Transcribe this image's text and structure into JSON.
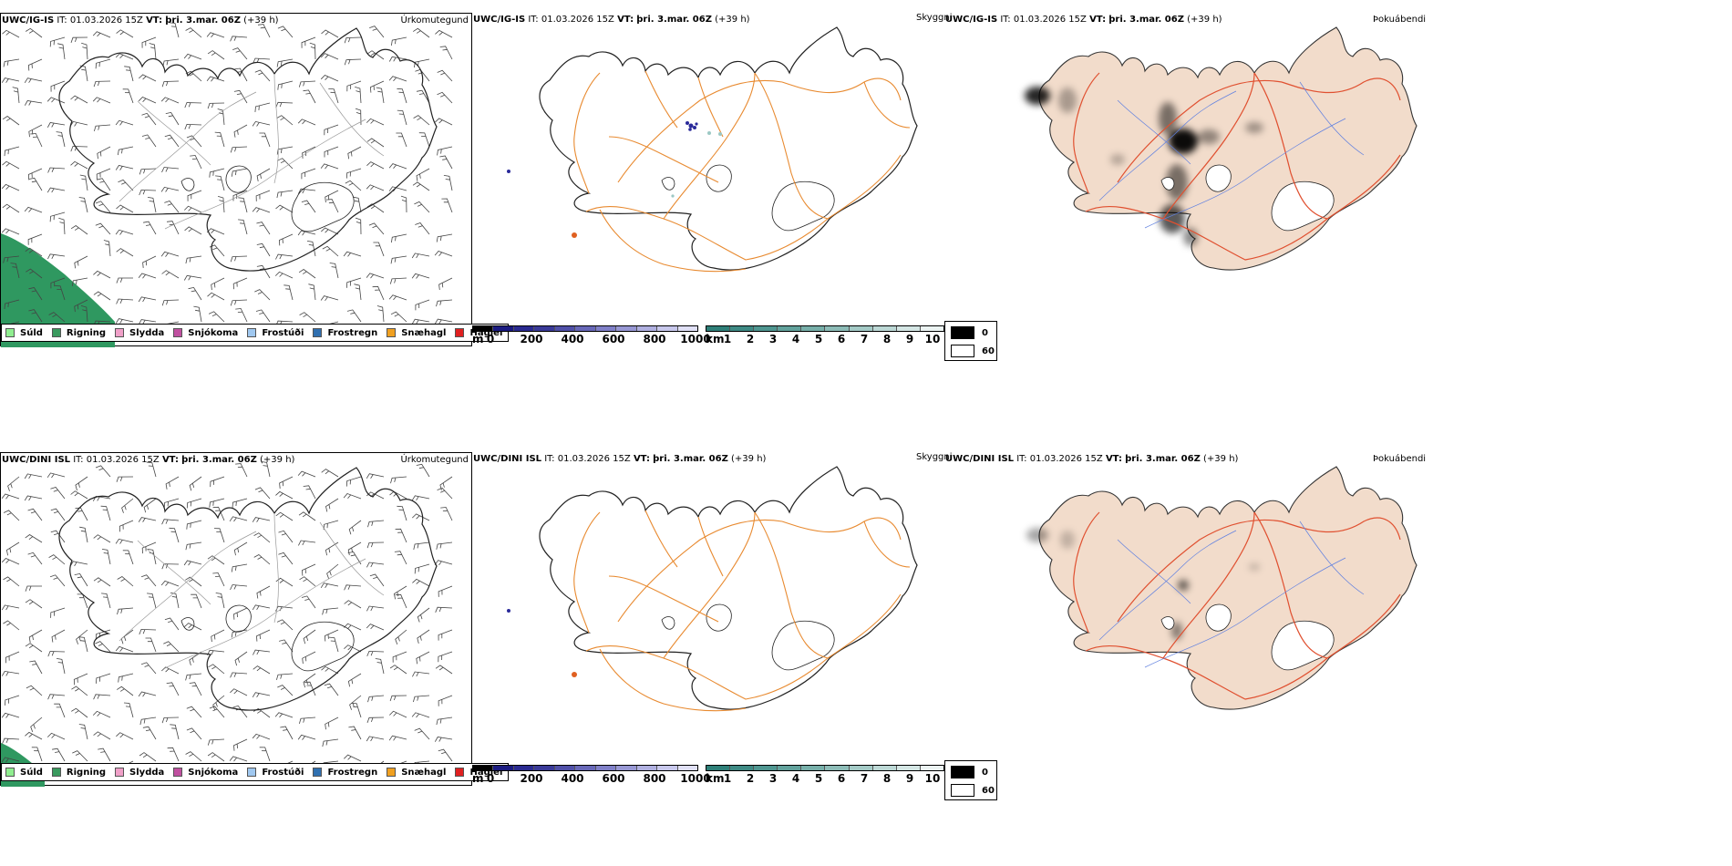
{
  "rows": [
    {
      "model": "UWC/IG-IS",
      "it_label": "IT:",
      "it_value": "01.03.2026 15Z",
      "vt_label": "VT:",
      "vt_value": "þri. 3.mar. 06Z",
      "lead": "(+39 h)"
    },
    {
      "model": "UWC/DINI ISL",
      "it_label": "IT:",
      "it_value": "01.03.2026 15Z",
      "vt_label": "VT:",
      "vt_value": "þri. 3.mar. 06Z",
      "lead": "(+39 h)"
    }
  ],
  "panel_titles": {
    "precip_type": "Úrkomutegund",
    "visibility": "Skyggni",
    "fog": "Þokuábendi"
  },
  "precip_legend": [
    {
      "label": "Súld",
      "color": "#90ee90"
    },
    {
      "label": "Rigning",
      "color": "#3a9a5e"
    },
    {
      "label": "Slydda",
      "color": "#f0a0c8"
    },
    {
      "label": "Snjókoma",
      "color": "#c050a0"
    },
    {
      "label": "Frostúði",
      "color": "#a0c8f0"
    },
    {
      "label": "Frostregn",
      "color": "#3070b0"
    },
    {
      "label": "Snæhagl",
      "color": "#f0a020"
    },
    {
      "label": "Haglél",
      "color": "#e02020"
    }
  ],
  "elevation_bar": {
    "unit": "m",
    "ticks": [
      "0",
      "200",
      "400",
      "600",
      "800",
      "1000"
    ],
    "colors": [
      "#000000",
      "#1a1a80",
      "#2a2a90",
      "#3a3a98",
      "#5050a8",
      "#6868b8",
      "#8080c8",
      "#9898d4",
      "#b0b0e0",
      "#c8c8ec",
      "#e0e0f6"
    ]
  },
  "visibility_bar": {
    "unit": "km",
    "ticks": [
      "1",
      "2",
      "3",
      "4",
      "5",
      "6",
      "7",
      "8",
      "9",
      "10"
    ],
    "colors": [
      "#2e7f78",
      "#3e8a84",
      "#4f9690",
      "#62a29c",
      "#77afa9",
      "#8dbcb7",
      "#a4cac6",
      "#bcd8d5",
      "#d4e6e4",
      "#ebf3f2"
    ]
  },
  "fog_legend": [
    {
      "label": "0",
      "color": "#000000"
    },
    {
      "label": "60",
      "color": "#ffffff"
    }
  ],
  "colors": {
    "rain_area": "#2f9860",
    "road": "#e88a30",
    "road_red": "#e05030",
    "land_fog": "#f2dccb",
    "river": "#6080e0"
  }
}
